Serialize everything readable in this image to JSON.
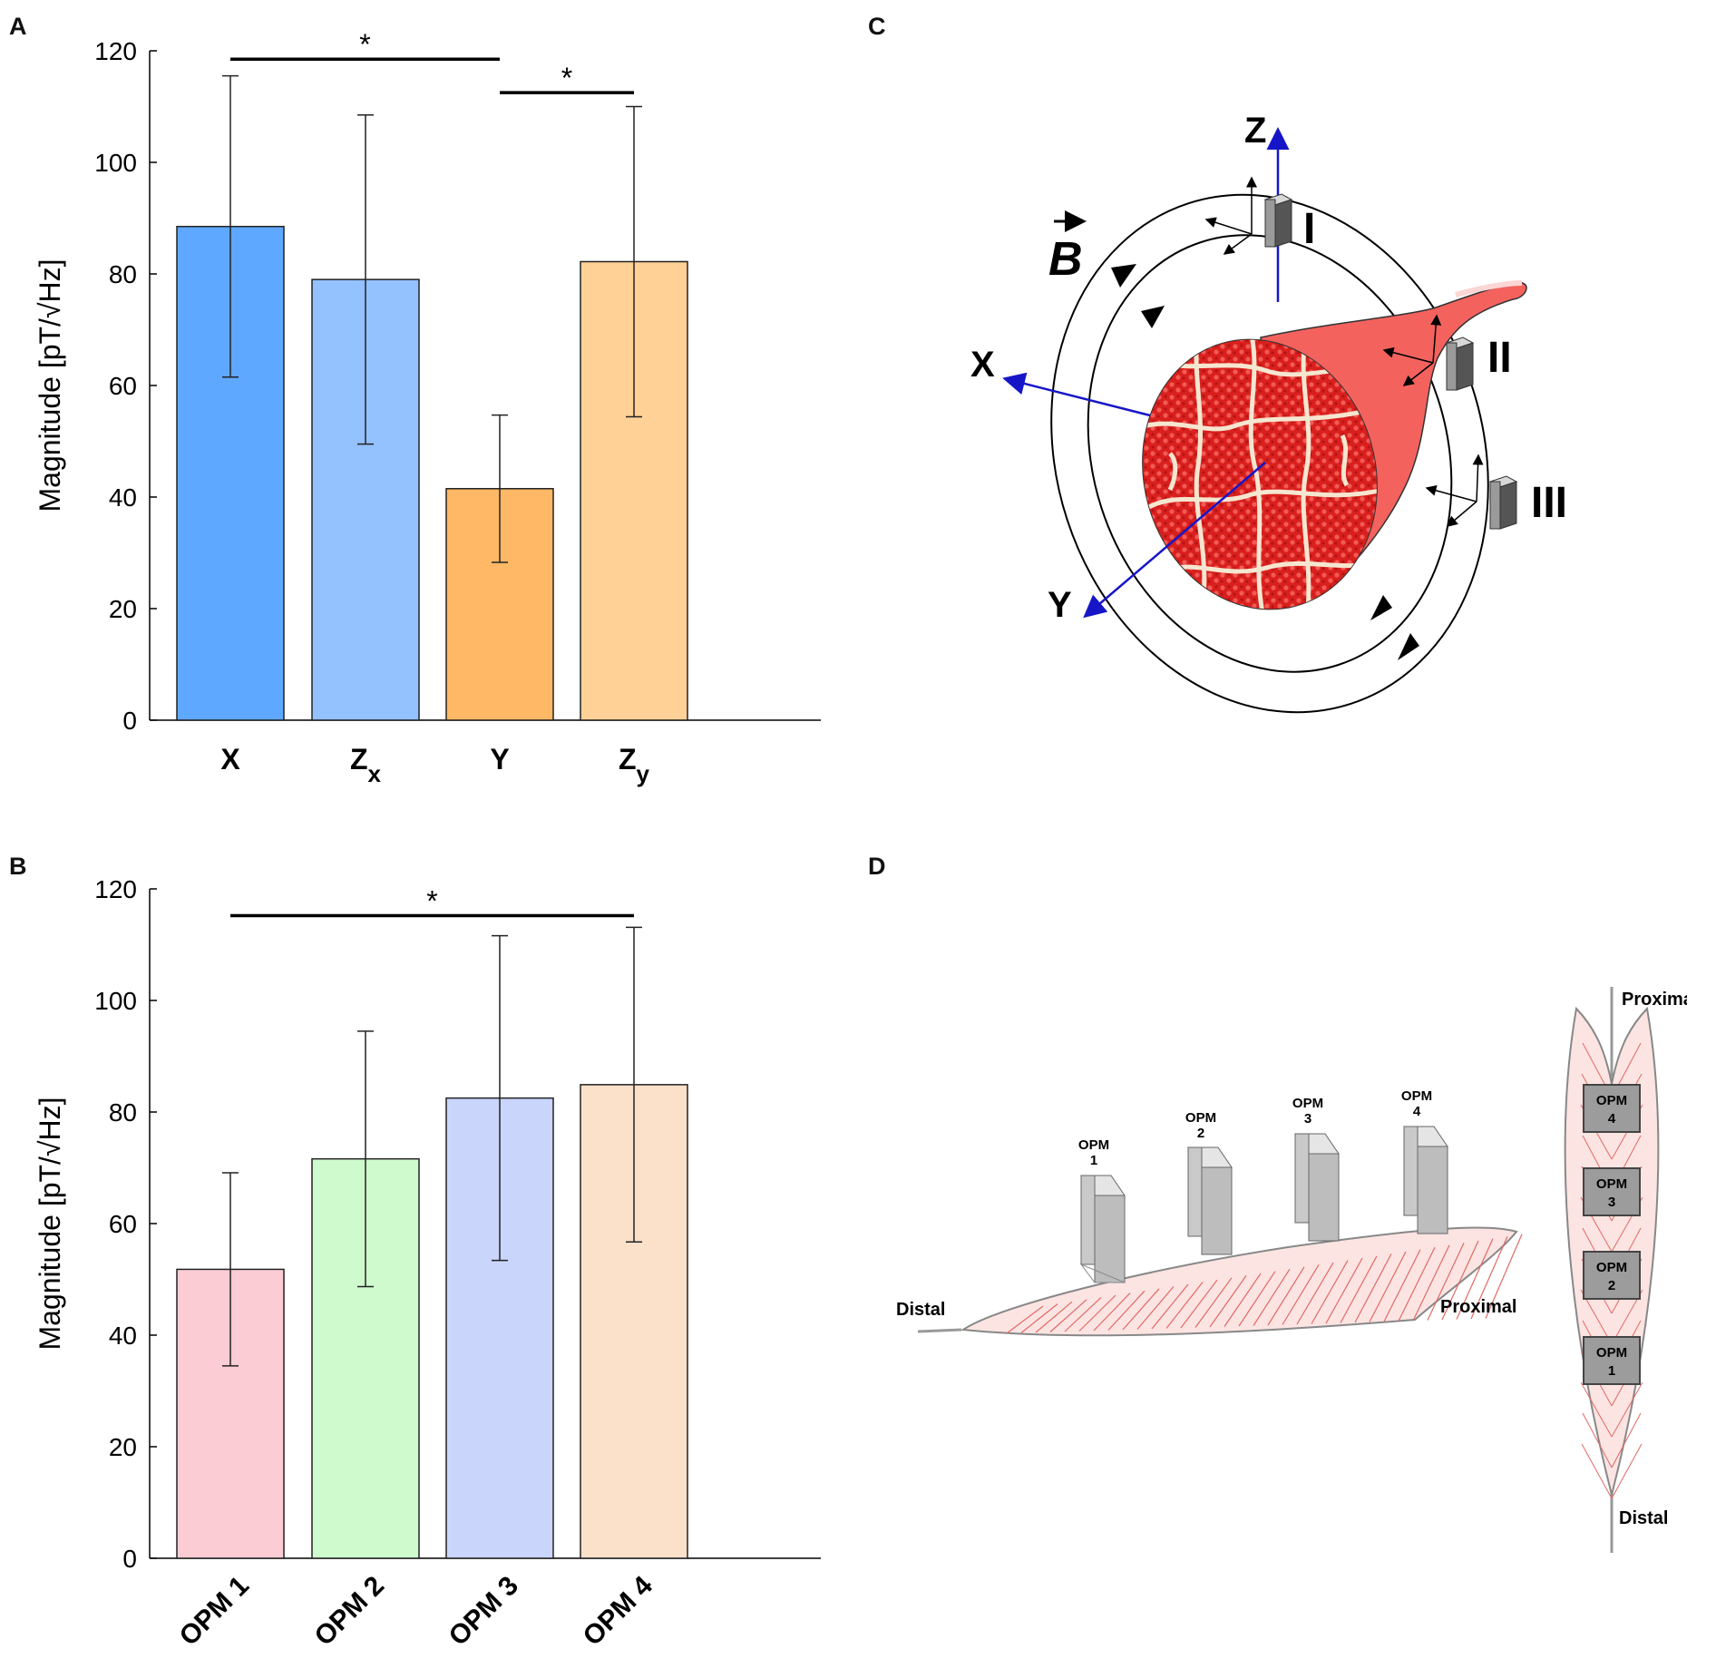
{
  "panels": {
    "a": "A",
    "b": "B",
    "c": "C",
    "d": "D"
  },
  "chart_data": [
    {
      "type": "bar",
      "panel": "A",
      "categories": [
        "X",
        "Zx",
        "Y",
        "Zy"
      ],
      "category_main": [
        "X",
        "Z",
        "Y",
        "Z"
      ],
      "category_sub": [
        "",
        "x",
        "",
        "y"
      ],
      "values": [
        88.5,
        79,
        41.5,
        82.2
      ],
      "errors": [
        27,
        29.5,
        13.2,
        27.8
      ],
      "colors": [
        "#5fa8ff",
        "#94c1ff",
        "#ffb865",
        "#ffd196"
      ],
      "ylabel": "Magnitude [pT/√Hz]",
      "ylim": [
        0,
        120
      ],
      "yticks": [
        0,
        20,
        40,
        60,
        80,
        100,
        120
      ],
      "significance": [
        {
          "from": 0,
          "to": 2,
          "y": 118.5,
          "label": "*"
        },
        {
          "from": 2,
          "to": 3,
          "y": 112.5,
          "label": "*"
        }
      ]
    },
    {
      "type": "bar",
      "panel": "B",
      "categories": [
        "OPM 1",
        "OPM 2",
        "OPM 3",
        "OPM 4"
      ],
      "values": [
        51.8,
        71.6,
        82.5,
        84.9
      ],
      "errors": [
        17.3,
        22.9,
        29.1,
        28.2
      ],
      "colors": [
        "#fbccd4",
        "#cefacd",
        "#c9d5fa",
        "#fbe0ca"
      ],
      "ylabel": "Magnitude [pT/√Hz]",
      "ylim": [
        0,
        120
      ],
      "yticks": [
        0,
        20,
        40,
        60,
        80,
        100,
        120
      ],
      "significance": [
        {
          "from": 0,
          "to": 3,
          "y": 115.2,
          "label": "*"
        }
      ]
    }
  ],
  "diagram_c": {
    "axis_z": "Z",
    "axis_x": "X",
    "axis_y": "Y",
    "field_label": "B",
    "sensors": [
      "I",
      "II",
      "III"
    ]
  },
  "diagram_d": {
    "side_distal": "Distal",
    "side_proximal": "Proximal",
    "side_opm_word": "OPM",
    "side_opm_numbers": [
      "1",
      "2",
      "3",
      "4"
    ],
    "top_proximal": "Proximal",
    "top_distal": "Distal",
    "top_opm_word": "OPM",
    "top_opm_numbers": [
      "4",
      "3",
      "2",
      "1"
    ]
  }
}
